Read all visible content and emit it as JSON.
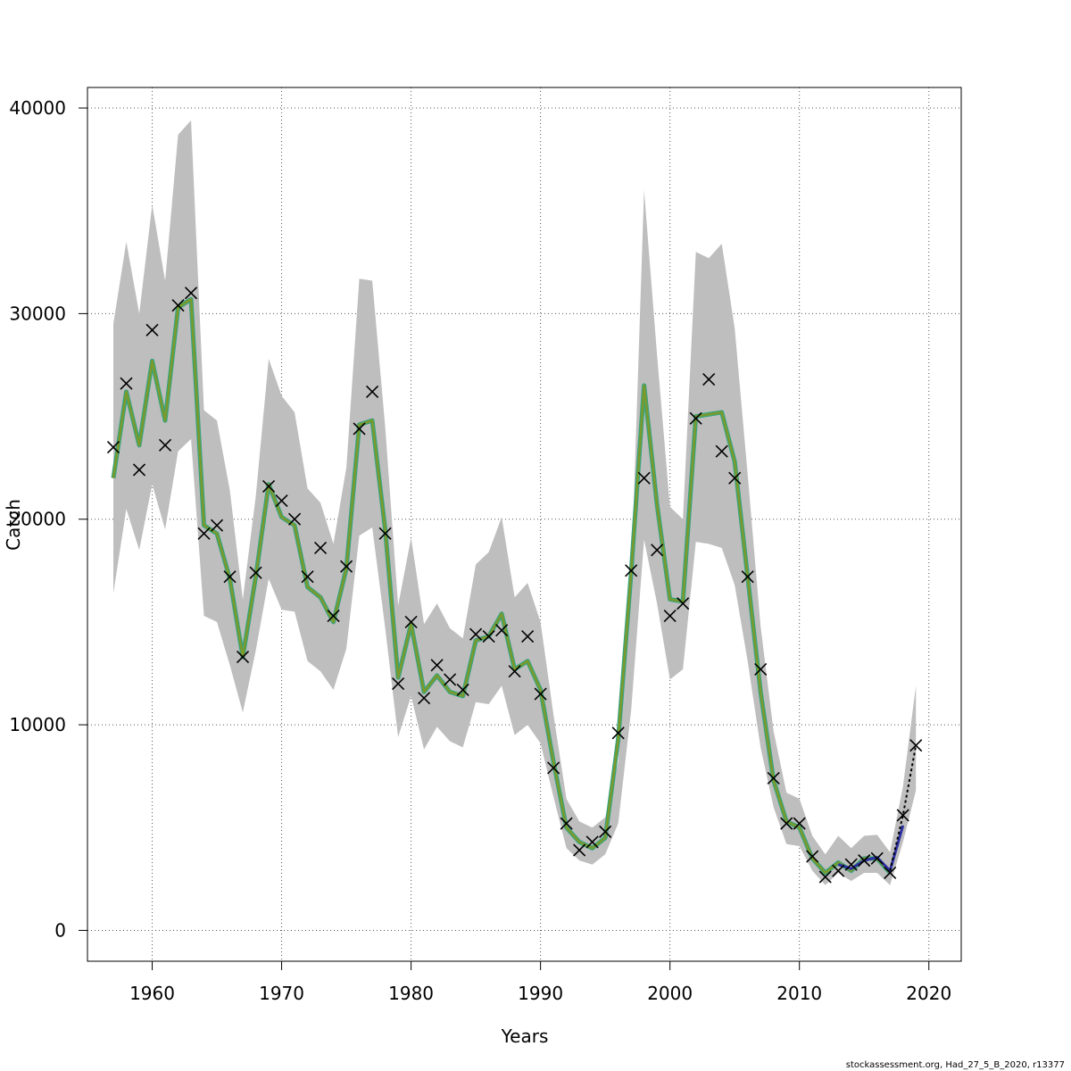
{
  "chart_data": {
    "type": "line",
    "xlabel": "Years",
    "ylabel": "Catch",
    "xlim": [
      1955,
      2022.5
    ],
    "ylim": [
      -1500,
      41000
    ],
    "x_ticks": [
      1960,
      1970,
      1980,
      1990,
      2000,
      2010,
      2020
    ],
    "y_ticks": [
      0,
      10000,
      20000,
      30000,
      40000
    ],
    "grid": true,
    "footer": "stockassessment.org, Had_27_5_B_2020, r13377",
    "colors": {
      "band": "#bebebe",
      "fit_outer": "#3aa37c",
      "fit_inner": "#7a9a2b",
      "retro": "#2b2fa0",
      "dashed": "#000000",
      "observed": "#000000"
    },
    "band": {
      "x": [
        1957,
        1958,
        1959,
        1960,
        1961,
        1962,
        1963,
        1964,
        1965,
        1966,
        1967,
        1968,
        1969,
        1970,
        1971,
        1972,
        1973,
        1974,
        1975,
        1976,
        1977,
        1978,
        1979,
        1980,
        1981,
        1982,
        1983,
        1984,
        1985,
        1986,
        1987,
        1988,
        1989,
        1990,
        1991,
        1992,
        1993,
        1994,
        1995,
        1996,
        1997,
        1998,
        1999,
        2000,
        2001,
        2002,
        2003,
        2004,
        2005,
        2006,
        2007,
        2008,
        2009,
        2010,
        2011,
        2012,
        2013,
        2014,
        2015,
        2016,
        2017,
        2018,
        2019
      ],
      "upper": [
        29500,
        33500,
        30000,
        35300,
        31600,
        38700,
        39400,
        25300,
        24800,
        21400,
        16100,
        21100,
        27800,
        26000,
        25200,
        21500,
        20800,
        18800,
        22500,
        31700,
        31600,
        24500,
        15800,
        19100,
        14900,
        15900,
        14700,
        14200,
        17800,
        18400,
        20100,
        16200,
        16900,
        15000,
        10500,
        6400,
        5300,
        5000,
        5500,
        8200,
        17000,
        36000,
        28000,
        20600,
        20000,
        33000,
        32700,
        33400,
        29300,
        22200,
        14800,
        9700,
        6700,
        6400,
        4600,
        3700,
        4600,
        4000,
        4600,
        4650,
        3800,
        7000,
        11900
      ],
      "lower": [
        16400,
        20500,
        18500,
        21700,
        19500,
        23300,
        23900,
        15300,
        15000,
        12900,
        10600,
        13600,
        17100,
        15600,
        15500,
        13100,
        12600,
        11700,
        13700,
        19200,
        19600,
        14700,
        9400,
        11400,
        8800,
        9900,
        9200,
        8900,
        11100,
        11000,
        11900,
        9500,
        10000,
        9100,
        6500,
        4000,
        3400,
        3200,
        3700,
        5200,
        10700,
        19000,
        15900,
        12200,
        12700,
        18900,
        18800,
        18600,
        16800,
        13100,
        8900,
        6000,
        4200,
        4100,
        2900,
        2200,
        2800,
        2400,
        2800,
        2800,
        2200,
        4300,
        6800
      ]
    },
    "series": [
      {
        "x": [
          1957,
          1958,
          1959,
          1960,
          1961,
          1962,
          1963,
          1964,
          1965,
          1966,
          1967,
          1968,
          1969,
          1970,
          1971,
          1972,
          1973,
          1974,
          1975,
          1976,
          1977,
          1978,
          1979,
          1980,
          1981,
          1982,
          1983,
          1984,
          1985,
          1986,
          1987,
          1988,
          1989,
          1990,
          1991,
          1992,
          1993,
          1994,
          1995,
          1996,
          1997,
          1998,
          1999,
          2000,
          2001,
          2002,
          2003,
          2004,
          2005,
          2006,
          2007,
          2008,
          2009,
          2010,
          2011,
          2012,
          2013,
          2014,
          2015,
          2016,
          2017
        ],
        "values": [
          22000,
          26200,
          23600,
          27700,
          24800,
          30300,
          30700,
          19700,
          19300,
          17100,
          13300,
          17200,
          21700,
          20100,
          19700,
          16700,
          16200,
          15000,
          17600,
          24600,
          24800,
          19500,
          12300,
          14900,
          11600,
          12400,
          11600,
          11400,
          14100,
          14300,
          15400,
          12700,
          13100,
          11700,
          8200,
          5000,
          4300,
          4000,
          4500,
          9300,
          17400,
          26500,
          20700,
          16100,
          16000,
          25000,
          25100,
          25200,
          22800,
          17200,
          11600,
          7300,
          5300,
          5000,
          3500,
          2800,
          3300,
          2900,
          3500,
          3500,
          2800
        ]
      }
    ],
    "retro_tail": {
      "x": [
        2013,
        2014,
        2015,
        2016,
        2017,
        2018
      ],
      "values": [
        3200,
        3000,
        3400,
        3550,
        2900,
        5100
      ]
    },
    "dashed_series": {
      "x": [
        2017,
        2018,
        2019
      ],
      "values": [
        2900,
        5600,
        9000
      ]
    },
    "observed": {
      "x": [
        1957,
        1958,
        1959,
        1960,
        1961,
        1962,
        1963,
        1964,
        1965,
        1966,
        1967,
        1968,
        1969,
        1970,
        1971,
        1972,
        1973,
        1974,
        1975,
        1976,
        1977,
        1978,
        1979,
        1980,
        1981,
        1982,
        1983,
        1984,
        1985,
        1986,
        1987,
        1988,
        1989,
        1990,
        1991,
        1992,
        1993,
        1994,
        1995,
        1996,
        1997,
        1998,
        1999,
        2000,
        2001,
        2002,
        2003,
        2004,
        2005,
        2006,
        2007,
        2008,
        2009,
        2010,
        2011,
        2012,
        2013,
        2014,
        2015,
        2016,
        2017,
        2018,
        2019
      ],
      "values": [
        23500,
        26600,
        22400,
        29200,
        23600,
        30400,
        31000,
        19300,
        19700,
        17200,
        13300,
        17400,
        21600,
        20900,
        20000,
        17200,
        18600,
        15300,
        17700,
        24400,
        26200,
        19300,
        12000,
        15000,
        11300,
        12900,
        12200,
        11700,
        14400,
        14300,
        14600,
        12600,
        14300,
        11500,
        7900,
        5200,
        3900,
        4300,
        4800,
        9600,
        17500,
        22000,
        18500,
        15300,
        15900,
        24900,
        26800,
        23300,
        22000,
        17200,
        12700,
        7400,
        5200,
        5200,
        3600,
        2600,
        2900,
        3200,
        3400,
        3500,
        2800,
        5600,
        9000
      ]
    }
  }
}
